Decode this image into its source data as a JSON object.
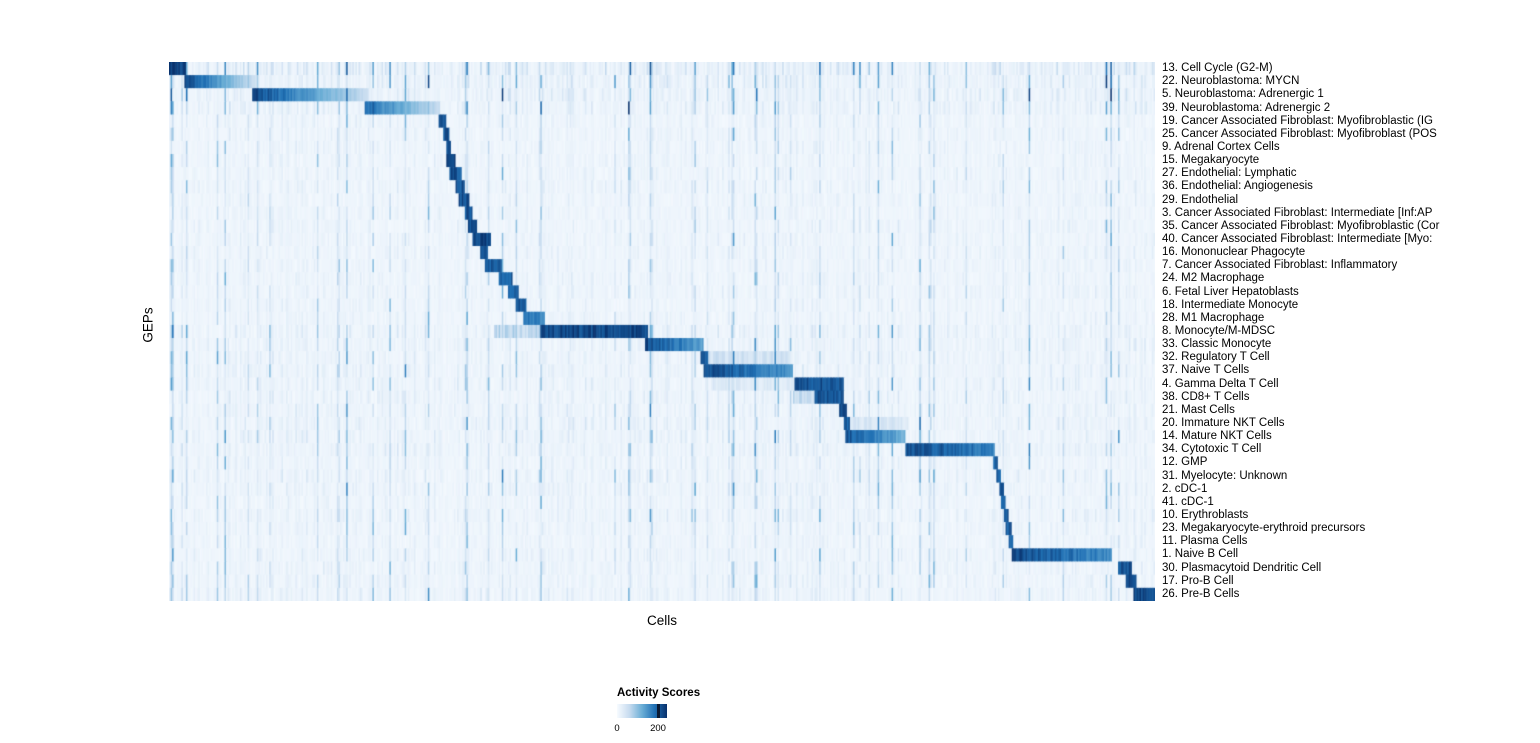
{
  "figure": {
    "xlabel": "Cells",
    "ylabel": "GEPs"
  },
  "legend": {
    "title": "Activity Scores",
    "tick_min": "0",
    "tick_max": "200"
  },
  "chart_data": {
    "type": "heatmap",
    "xlabel": "Cells",
    "ylabel": "GEPs",
    "legend_title": "Activity Scores",
    "colorbar_ticks": [
      0,
      200
    ],
    "colormap_stops": [
      "#f7fbff",
      "#c6dbef",
      "#6baed6",
      "#2171b5",
      "#08306b"
    ],
    "grid": false,
    "layout": "41 GEP rows ordered top to bottom; columns are single cells grouped by cell type; each row's high-activity block is given as fractions [block_start, block_end] of the x-axis; peak is activity relative to colorbar max; diagonal block structure from top-left to bottom-right with sparse light-blue background noise",
    "rows": [
      {
        "label": "13. Cell Cycle (G2-M)",
        "block_start": 0.0,
        "block_end": 0.017,
        "peak": 1.0,
        "fade": 0,
        "noise": 1.3
      },
      {
        "label": "22. Neuroblastoma: MYCN",
        "block_start": 0.016,
        "block_end": 0.09,
        "peak": 1.0,
        "fade": 0.8,
        "noise": 0.9
      },
      {
        "label": "5. Neuroblastoma: Adrenergic 1",
        "block_start": 0.085,
        "block_end": 0.202,
        "peak": 1.0,
        "fade": 0.75,
        "noise": 0.9
      },
      {
        "label": "39. Neuroblastoma: Adrenergic 2",
        "block_start": 0.198,
        "block_end": 0.275,
        "peak": 0.85,
        "fade": 0.7,
        "noise": 0.8
      },
      {
        "label": "19. Cancer Associated Fibroblast: Myofibroblastic (IG",
        "block_start": 0.274,
        "block_end": 0.281,
        "peak": 0.95,
        "fade": 0
      },
      {
        "label": "25. Cancer Associated Fibroblast: Myofibroblast (POS",
        "block_start": 0.278,
        "block_end": 0.284,
        "peak": 0.95,
        "fade": 0
      },
      {
        "label": "9. Adrenal Cortex Cells",
        "block_start": 0.281,
        "block_end": 0.286,
        "peak": 0.95,
        "fade": 0
      },
      {
        "label": "15. Megakaryocyte",
        "block_start": 0.281,
        "block_end": 0.29,
        "peak": 1.0,
        "fade": 0
      },
      {
        "label": "27. Endothelial: Lymphatic",
        "block_start": 0.285,
        "block_end": 0.297,
        "peak": 0.95,
        "fade": 0
      },
      {
        "label": "36. Endothelial: Angiogenesis",
        "block_start": 0.29,
        "block_end": 0.3,
        "peak": 0.95,
        "fade": 0
      },
      {
        "label": "29. Endothelial",
        "block_start": 0.293,
        "block_end": 0.305,
        "peak": 0.95,
        "fade": 0
      },
      {
        "label": "3. Cancer Associated Fibroblast: Intermediate [Inf:AP",
        "block_start": 0.3,
        "block_end": 0.308,
        "peak": 0.95,
        "fade": 0
      },
      {
        "label": "35. Cancer Associated Fibroblast: Myofibroblastic (Cor",
        "block_start": 0.303,
        "block_end": 0.313,
        "peak": 0.95,
        "fade": 0
      },
      {
        "label": "40. Cancer Associated Fibroblast: Intermediate [Myo:",
        "block_start": 0.308,
        "block_end": 0.327,
        "peak": 1.0,
        "fade": 0
      },
      {
        "label": "16. Mononuclear Phagocyte",
        "block_start": 0.315,
        "block_end": 0.323,
        "peak": 0.9,
        "fade": 0
      },
      {
        "label": "7. Cancer Associated Fibroblast: Inflammatory",
        "block_start": 0.32,
        "block_end": 0.338,
        "peak": 0.9,
        "fade": 0
      },
      {
        "label": "24. M2 Macrophage",
        "block_start": 0.334,
        "block_end": 0.348,
        "peak": 0.9,
        "fade": 0
      },
      {
        "label": "6. Fetal Liver Hepatoblasts",
        "block_start": 0.344,
        "block_end": 0.354,
        "peak": 0.9,
        "fade": 0
      },
      {
        "label": "18. Intermediate Monocyte",
        "block_start": 0.351,
        "block_end": 0.363,
        "peak": 0.9,
        "fade": 0
      },
      {
        "label": "28. M1 Macrophage",
        "block_start": 0.359,
        "block_end": 0.381,
        "peak": 0.85,
        "fade": 0.2
      },
      {
        "label": "8. Monocyte/M-MDSC",
        "block_start": 0.376,
        "block_end": 0.486,
        "peak": 1.0,
        "fade": 0,
        "noise": 0.7,
        "band": [
          0.33,
          0.38,
          0.3
        ]
      },
      {
        "label": "33. Classic Monocyte",
        "block_start": 0.483,
        "block_end": 0.542,
        "peak": 1.0,
        "fade": 0.4,
        "noise": 0.6
      },
      {
        "label": "32. Regulatory T Cell",
        "block_start": 0.539,
        "block_end": 0.547,
        "peak": 0.9,
        "fade": 0,
        "noise": 0.6,
        "band": [
          0.547,
          0.63,
          0.22
        ]
      },
      {
        "label": "37. Naive T Cells",
        "block_start": 0.542,
        "block_end": 0.633,
        "peak": 1.0,
        "fade": 0.35,
        "noise": 0.6
      },
      {
        "label": "4. Gamma Delta T Cell",
        "block_start": 0.635,
        "block_end": 0.684,
        "peak": 0.95,
        "fade": 0,
        "noise": 0.6,
        "band": [
          0.55,
          0.635,
          0.15
        ]
      },
      {
        "label": "38. CD8+ T Cells",
        "block_start": 0.655,
        "block_end": 0.684,
        "peak": 0.95,
        "fade": 0,
        "noise": 0.6,
        "band": [
          0.633,
          0.655,
          0.3
        ]
      },
      {
        "label": "21. Mast Cells",
        "block_start": 0.68,
        "block_end": 0.687,
        "peak": 0.95,
        "fade": 0,
        "noise": 0.6
      },
      {
        "label": "20. Immature NKT Cells",
        "block_start": 0.684,
        "block_end": 0.69,
        "peak": 0.9,
        "fade": 0,
        "noise": 0.65,
        "band": [
          0.69,
          0.75,
          0.18
        ]
      },
      {
        "label": "14. Mature NKT Cells",
        "block_start": 0.686,
        "block_end": 0.747,
        "peak": 0.95,
        "fade": 0.45,
        "noise": 0.65
      },
      {
        "label": "34. Cytotoxic T Cell",
        "block_start": 0.747,
        "block_end": 0.838,
        "peak": 1.0,
        "fade": 0.25,
        "noise": 0.65
      },
      {
        "label": "12. GMP",
        "block_start": 0.836,
        "block_end": 0.841,
        "peak": 0.9,
        "fade": 0
      },
      {
        "label": "31. Myelocyte: Unknown",
        "block_start": 0.839,
        "block_end": 0.844,
        "peak": 0.9,
        "fade": 0,
        "noise": 0.6
      },
      {
        "label": "2. cDC-1",
        "block_start": 0.842,
        "block_end": 0.847,
        "peak": 0.9,
        "fade": 0,
        "noise": 0.6
      },
      {
        "label": "41. cDC-1",
        "block_start": 0.844,
        "block_end": 0.849,
        "peak": 0.9,
        "fade": 0
      },
      {
        "label": "10. Erythroblasts",
        "block_start": 0.847,
        "block_end": 0.852,
        "peak": 0.9,
        "fade": 0,
        "noise": 0.6
      },
      {
        "label": "23. Megakaryocyte-erythroid precursors",
        "block_start": 0.849,
        "block_end": 0.854,
        "peak": 0.9,
        "fade": 0
      },
      {
        "label": "11. Plasma Cells",
        "block_start": 0.852,
        "block_end": 0.857,
        "peak": 0.9,
        "fade": 0
      },
      {
        "label": "1. Naive B Cell",
        "block_start": 0.855,
        "block_end": 0.956,
        "peak": 1.0,
        "fade": 0.3,
        "noise": 0.55
      },
      {
        "label": "30. Plasmacytoid Dendritic Cell",
        "block_start": 0.962,
        "block_end": 0.976,
        "peak": 0.95,
        "fade": 0,
        "noise": 0.55
      },
      {
        "label": "17. Pro-B Cell",
        "block_start": 0.97,
        "block_end": 0.982,
        "peak": 0.95,
        "fade": 0,
        "noise": 0.55
      },
      {
        "label": "26. Pre-B Cells",
        "block_start": 0.978,
        "block_end": 1.0,
        "peak": 1.0,
        "fade": 0,
        "noise": 0.6
      }
    ]
  }
}
